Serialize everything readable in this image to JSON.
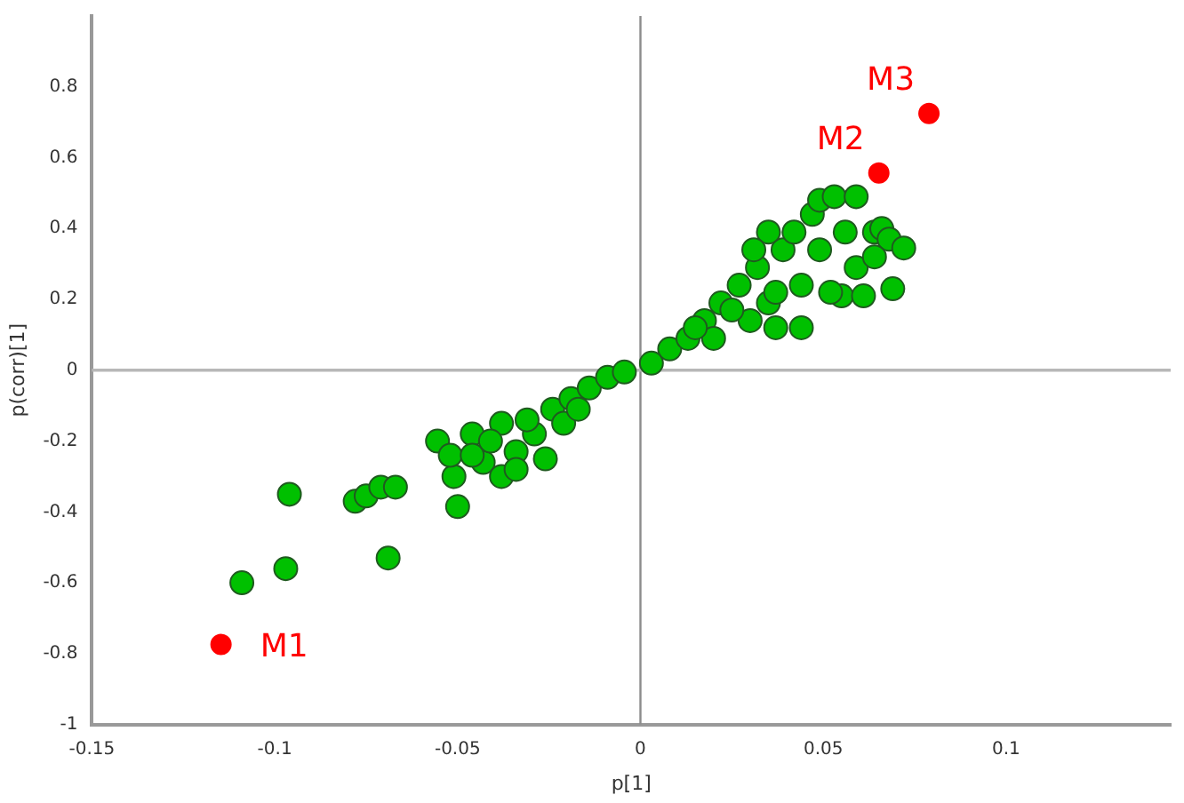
{
  "chart_data": {
    "type": "scatter",
    "xlabel": "p[1]",
    "ylabel": "p(corr)[1]",
    "xlim": [
      -0.15,
      0.145
    ],
    "xticks": [
      -0.15,
      -0.1,
      -0.05,
      0,
      0.05,
      0.1
    ],
    "ylim": [
      -1,
      1
    ],
    "yticks": [
      -1,
      -0.8,
      -0.6,
      -0.4,
      -0.2,
      0,
      0.2,
      0.4,
      0.6,
      0.8
    ],
    "grid": false,
    "legend": false,
    "marker": "circle",
    "ref_lines": [
      {
        "axis": "x",
        "value": 0,
        "color": "#8c8c8c"
      },
      {
        "axis": "y",
        "value": 0,
        "color": "#b8b8b8"
      }
    ],
    "series": [
      {
        "color": "#00c000",
        "x": [
          -0.109,
          -0.096,
          -0.097,
          -0.078,
          -0.075,
          -0.071,
          -0.067,
          -0.069,
          -0.0555,
          -0.05,
          -0.051,
          -0.052,
          -0.046,
          -0.043,
          -0.038,
          -0.034,
          -0.029,
          -0.024,
          -0.019,
          -0.014,
          -0.009,
          -0.0044,
          -0.038,
          -0.034,
          -0.041,
          -0.026,
          -0.021,
          -0.046,
          -0.031,
          -0.017,
          0.003,
          0.008,
          0.013,
          0.0175,
          0.02,
          0.022,
          0.027,
          0.03,
          0.032,
          0.035,
          0.037,
          0.039,
          0.042,
          0.044,
          0.047,
          0.049,
          0.053,
          0.056,
          0.059,
          0.055,
          0.061,
          0.064,
          0.066,
          0.068,
          0.072,
          0.069,
          0.035,
          0.025,
          0.015,
          0.031,
          0.049,
          0.052,
          0.037,
          0.044,
          0.064,
          0.059
        ],
        "values": [
          -0.6,
          -0.35,
          -0.56,
          -0.37,
          -0.355,
          -0.33,
          -0.33,
          -0.53,
          -0.2,
          -0.385,
          -0.3,
          -0.24,
          -0.18,
          -0.26,
          -0.15,
          -0.23,
          -0.18,
          -0.11,
          -0.08,
          -0.05,
          -0.02,
          -0.005,
          -0.3,
          -0.28,
          -0.2,
          -0.25,
          -0.15,
          -0.24,
          -0.14,
          -0.11,
          0.02,
          0.06,
          0.09,
          0.14,
          0.09,
          0.19,
          0.24,
          0.14,
          0.29,
          0.19,
          0.12,
          0.34,
          0.39,
          0.24,
          0.44,
          0.48,
          0.49,
          0.39,
          0.29,
          0.21,
          0.21,
          0.39,
          0.4,
          0.37,
          0.345,
          0.23,
          0.39,
          0.17,
          0.12,
          0.34,
          0.34,
          0.22,
          0.22,
          0.12,
          0.32,
          0.49
        ]
      },
      {
        "color": "#ff0000",
        "x": [
          -0.1147,
          0.0652,
          0.0789
        ],
        "values": [
          -0.774,
          0.557,
          0.725
        ]
      }
    ],
    "annotations": [
      {
        "text": "M1",
        "x": -0.1147,
        "y": -0.774
      },
      {
        "text": "M2",
        "x": 0.0652,
        "y": 0.557
      },
      {
        "text": "M3",
        "x": 0.0789,
        "y": 0.725
      }
    ]
  }
}
